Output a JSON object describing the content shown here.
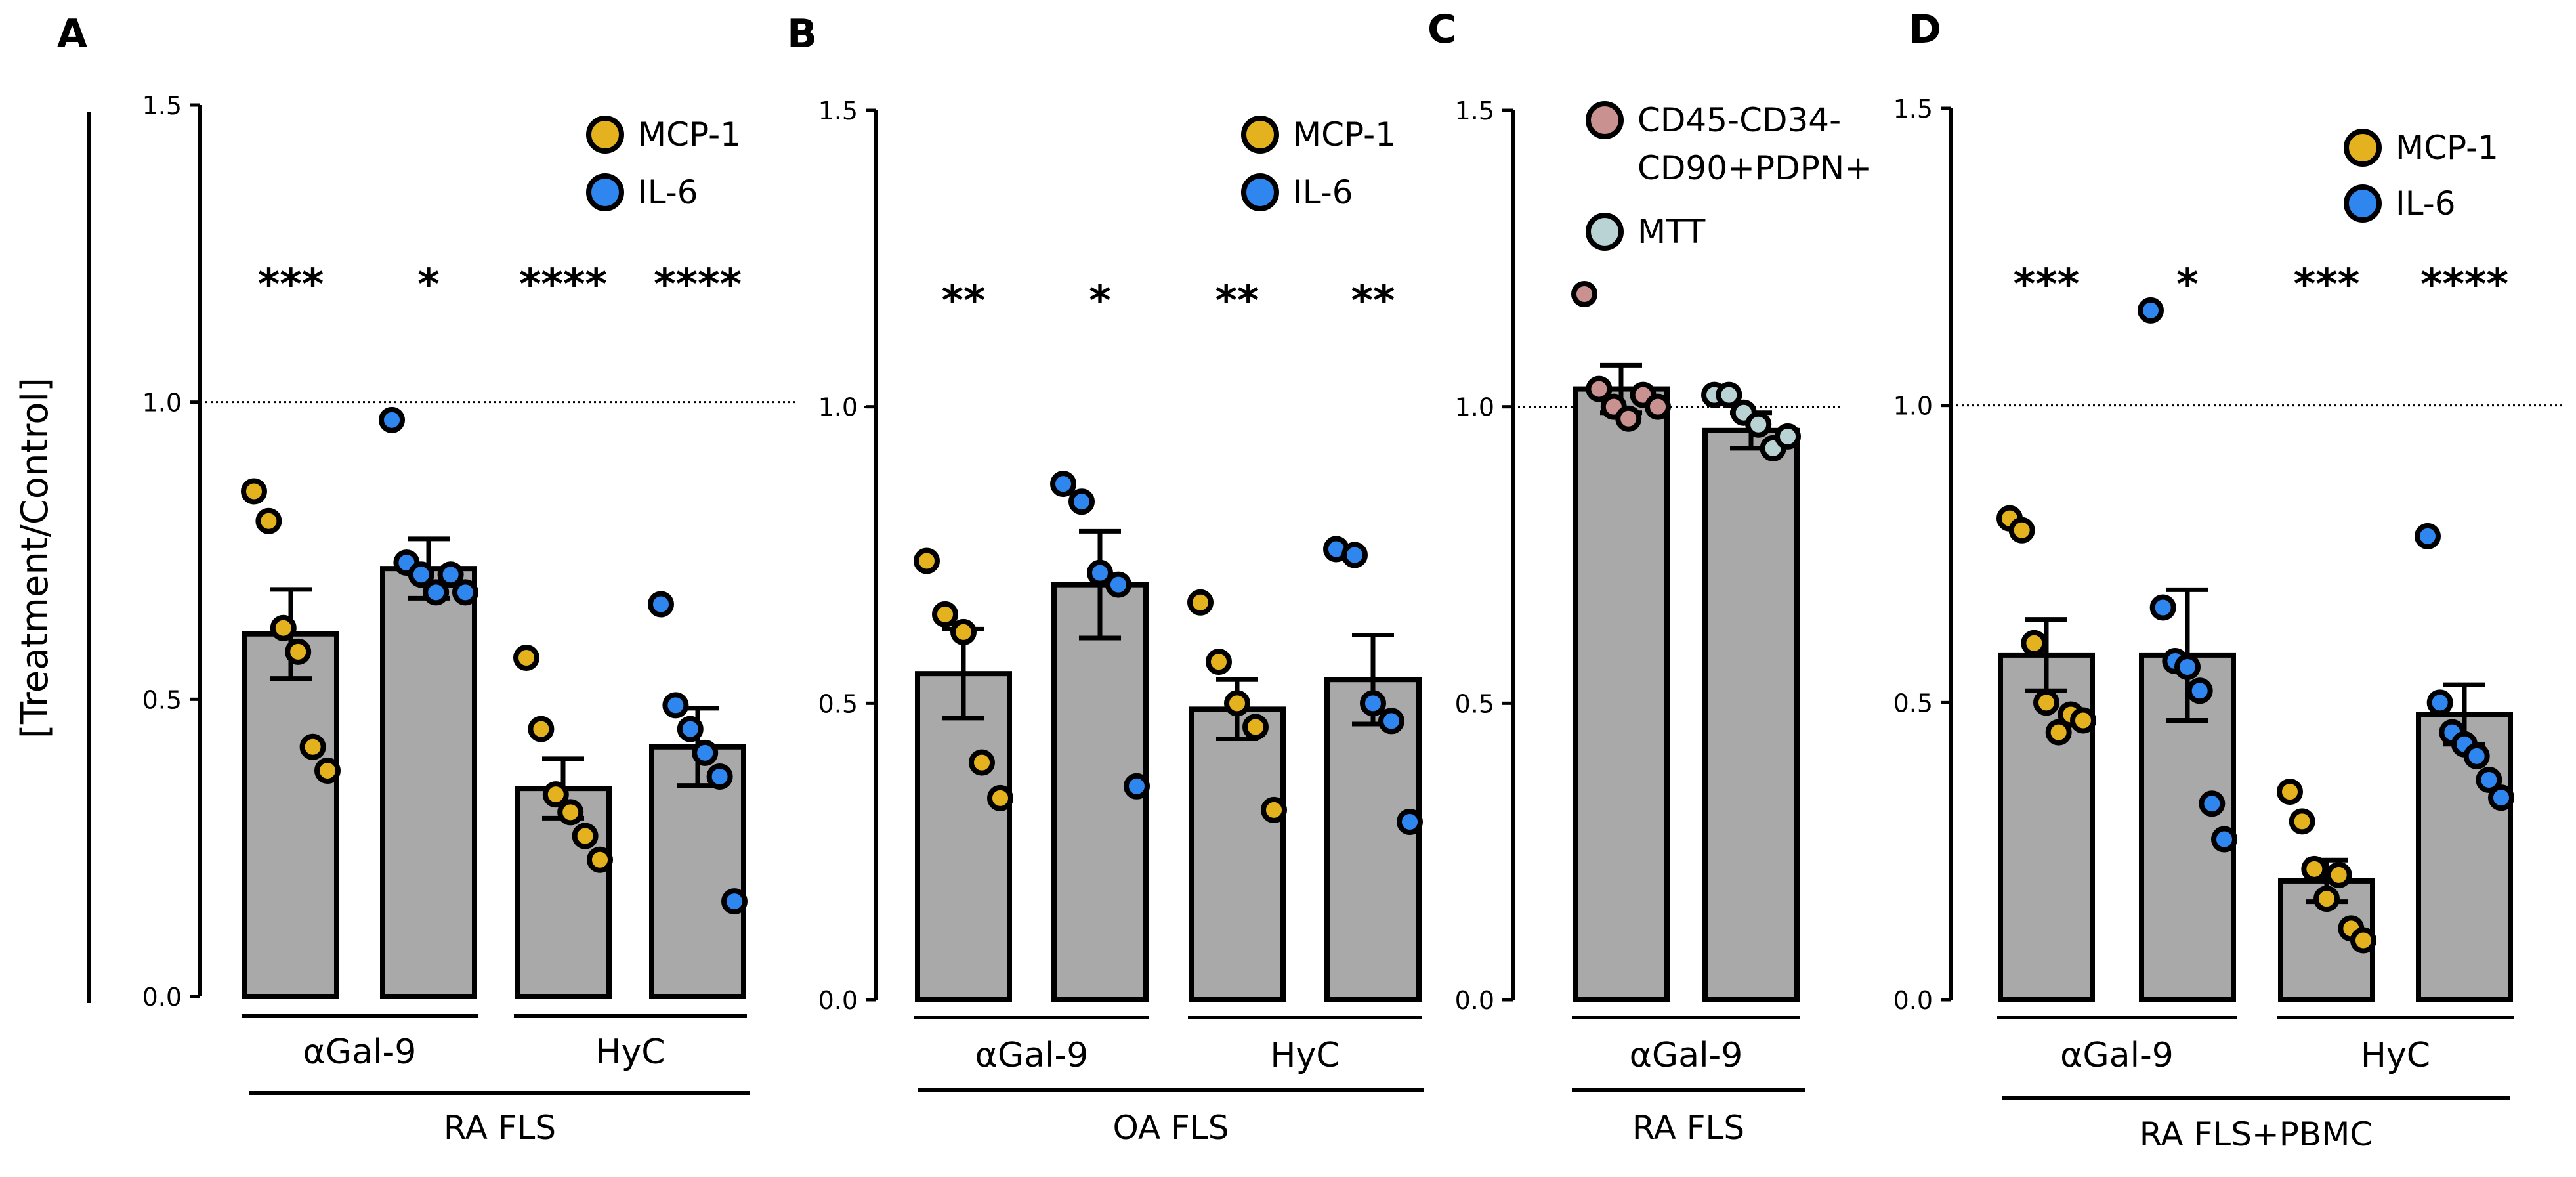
{
  "y_axis_title": "[Treatment/Control]",
  "colors": {
    "bar_fill": "#a9a9a9",
    "mcp1": "#e3b21e",
    "il6": "#2f86ef",
    "cd45": "#c9918f",
    "mtt": "#b9d3d4"
  },
  "chart_data": [
    {
      "type": "bar",
      "panel": "A",
      "ylim": [
        0,
        1.5
      ],
      "yticks": [
        "0.0",
        "0.5",
        "1.0",
        "1.5"
      ],
      "reference_line": 1.0,
      "legend": [
        {
          "name": "MCP-1",
          "color": "#e3b21e"
        },
        {
          "name": "IL-6",
          "color": "#2f86ef"
        }
      ],
      "bars": [
        {
          "mean": 0.61,
          "sem": 0.075,
          "color": "#e3b21e",
          "significance": "***",
          "points": [
            0.85,
            0.8,
            0.62,
            0.58,
            0.42,
            0.38
          ]
        },
        {
          "mean": 0.72,
          "sem": 0.05,
          "color": "#2f86ef",
          "significance": "*",
          "points": [
            0.97,
            0.73,
            0.71,
            0.68,
            0.71,
            0.68
          ]
        },
        {
          "mean": 0.35,
          "sem": 0.05,
          "color": "#e3b21e",
          "significance": "****",
          "points": [
            0.57,
            0.45,
            0.34,
            0.31,
            0.27,
            0.23
          ]
        },
        {
          "mean": 0.42,
          "sem": 0.065,
          "color": "#2f86ef",
          "significance": "****",
          "points": [
            0.66,
            0.49,
            0.45,
            0.41,
            0.37,
            0.16
          ]
        }
      ],
      "group_labels": [
        {
          "text": "αGal-9",
          "bars": [
            0,
            1
          ]
        },
        {
          "text": "HyC",
          "bars": [
            2,
            3
          ]
        }
      ],
      "bottom_label": "RA FLS"
    },
    {
      "type": "bar",
      "panel": "B",
      "ylim": [
        0,
        1.5
      ],
      "yticks": [
        "0.0",
        "0.5",
        "1.0",
        "1.5"
      ],
      "reference_line": 1.0,
      "legend": [
        {
          "name": "MCP-1",
          "color": "#e3b21e"
        },
        {
          "name": "IL-6",
          "color": "#2f86ef"
        }
      ],
      "bars": [
        {
          "mean": 0.55,
          "sem": 0.075,
          "color": "#e3b21e",
          "significance": "**",
          "points": [
            0.74,
            0.65,
            0.62,
            0.4,
            0.34
          ]
        },
        {
          "mean": 0.7,
          "sem": 0.09,
          "color": "#2f86ef",
          "significance": "*",
          "points": [
            0.87,
            0.84,
            0.72,
            0.7,
            0.36
          ]
        },
        {
          "mean": 0.49,
          "sem": 0.05,
          "color": "#e3b21e",
          "significance": "**",
          "points": [
            0.67,
            0.57,
            0.5,
            0.46,
            0.32
          ]
        },
        {
          "mean": 0.54,
          "sem": 0.075,
          "color": "#2f86ef",
          "significance": "**",
          "points": [
            0.76,
            0.75,
            0.5,
            0.47,
            0.3
          ]
        }
      ],
      "group_labels": [
        {
          "text": "αGal-9",
          "bars": [
            0,
            1
          ]
        },
        {
          "text": "HyC",
          "bars": [
            2,
            3
          ]
        }
      ],
      "bottom_label": "OA FLS"
    },
    {
      "type": "bar",
      "panel": "C",
      "ylim": [
        0,
        1.5
      ],
      "yticks": [
        "0.0",
        "0.5",
        "1.0",
        "1.5"
      ],
      "reference_line": 1.0,
      "legend": [
        {
          "name": "CD45-CD34-",
          "name_line2": "CD90+PDPN+",
          "color": "#c9918f"
        },
        {
          "name": "MTT",
          "color": "#b9d3d4"
        }
      ],
      "bars": [
        {
          "mean": 1.03,
          "sem": 0.04,
          "color": "#c9918f",
          "significance": "",
          "points": [
            1.19,
            1.03,
            1.0,
            0.98,
            1.02,
            1.0
          ]
        },
        {
          "mean": 0.96,
          "sem": 0.03,
          "color": "#b9d3d4",
          "significance": "",
          "points": [
            1.02,
            1.02,
            0.99,
            0.97,
            0.93,
            0.95
          ]
        }
      ],
      "group_labels": [
        {
          "text": "αGal-9",
          "bars": [
            0,
            1
          ]
        }
      ],
      "bottom_label": "RA FLS"
    },
    {
      "type": "bar",
      "panel": "D",
      "ylim": [
        0,
        1.5
      ],
      "yticks": [
        "0.0",
        "0.5",
        "1.0",
        "1.5"
      ],
      "reference_line": 1.0,
      "legend": [
        {
          "name": "MCP-1",
          "color": "#e3b21e"
        },
        {
          "name": "IL-6",
          "color": "#2f86ef"
        }
      ],
      "bars": [
        {
          "mean": 0.58,
          "sem": 0.06,
          "color": "#e3b21e",
          "significance": "***",
          "points": [
            0.81,
            0.79,
            0.6,
            0.5,
            0.45,
            0.48,
            0.47
          ]
        },
        {
          "mean": 0.58,
          "sem": 0.11,
          "color": "#2f86ef",
          "significance": "*",
          "points": [
            1.16,
            0.66,
            0.57,
            0.56,
            0.52,
            0.33,
            0.27
          ]
        },
        {
          "mean": 0.2,
          "sem": 0.035,
          "color": "#e3b21e",
          "significance": "***",
          "points": [
            0.35,
            0.3,
            0.22,
            0.17,
            0.21,
            0.12,
            0.1
          ]
        },
        {
          "mean": 0.48,
          "sem": 0.05,
          "color": "#2f86ef",
          "significance": "****",
          "points": [
            0.78,
            0.5,
            0.45,
            0.43,
            0.41,
            0.37,
            0.34
          ]
        }
      ],
      "group_labels": [
        {
          "text": "αGal-9",
          "bars": [
            0,
            1
          ]
        },
        {
          "text": "HyC",
          "bars": [
            2,
            3
          ]
        }
      ],
      "bottom_label": "RA FLS+PBMC"
    }
  ]
}
